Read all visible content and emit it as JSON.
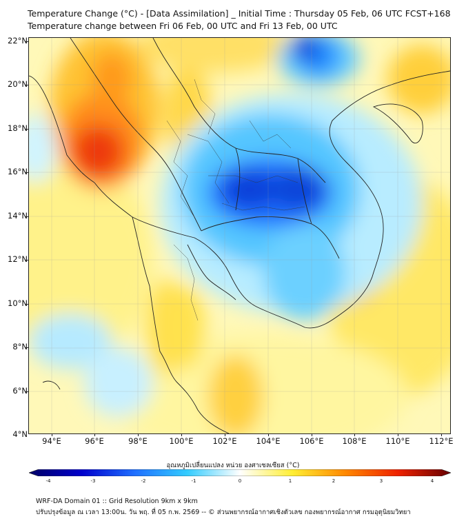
{
  "title": {
    "line1": "Temperature Change (°C) - [Data Assimilation] _ Initial Time : Thursday 05 Feb, 06 UTC FCST+168",
    "line2": "Temperature change between Fri 06 Feb, 00 UTC and Fri 13 Feb, 00 UTC"
  },
  "map": {
    "lat_range": [
      4,
      22
    ],
    "lon_range": [
      93,
      112.5
    ],
    "lat_ticks": [
      "22°N",
      "20°N",
      "18°N",
      "16°N",
      "14°N",
      "12°N",
      "10°N",
      "8°N",
      "6°N",
      "4°N"
    ],
    "lon_ticks": [
      "94°E",
      "96°E",
      "98°E",
      "100°E",
      "102°E",
      "104°E",
      "106°E",
      "108°E",
      "110°E",
      "112°E"
    ]
  },
  "colorbar": {
    "title": "อุณหภูมิเปลี่ยนแปลง หน่วย องศาเซลเซียส (°C)",
    "range": [
      -4,
      4
    ],
    "tick_labels": [
      "-4",
      "-3",
      "-2",
      "-1",
      "0",
      "1",
      "2",
      "3",
      "4"
    ],
    "colors": [
      "#000066",
      "#0000cc",
      "#1f6fff",
      "#33ccff",
      "#ffffff",
      "#ffee33",
      "#ff8800",
      "#ee2200",
      "#660000"
    ]
  },
  "footer": {
    "line1": "WRF-DA Domain 01 :: Grid Resolution 9km x 9km",
    "line2": "ปรับปรุงข้อมูล ณ เวลา 13:00น. วัน พฤ. ที่ 05 ก.พ. 2569 -- © ส่วนพยากรณ์อากาศเชิงตัวเลข กองพยากรณ์อากาศ กรมอุตุนิยมวิทยา"
  }
}
